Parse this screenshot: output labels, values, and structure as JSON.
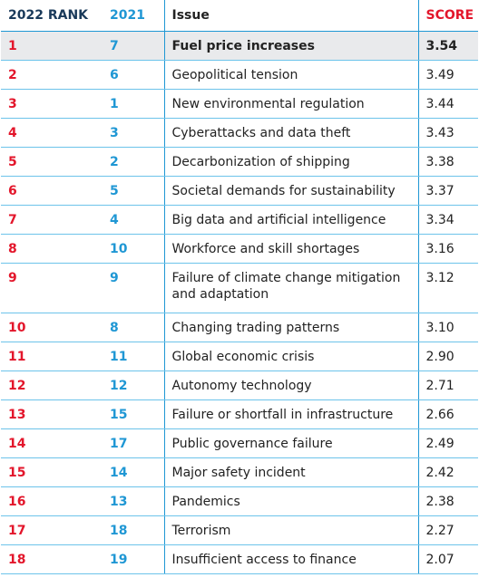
{
  "header": {
    "rank": "2022 RANK",
    "prev": "2021",
    "issue": "Issue",
    "score": "SCORE"
  },
  "rows": [
    {
      "rank": "1",
      "prev": "7",
      "issue": "Fuel price increases",
      "score": "3.54"
    },
    {
      "rank": "2",
      "prev": "6",
      "issue": "Geopolitical tension",
      "score": "3.49"
    },
    {
      "rank": "3",
      "prev": "1",
      "issue": "New environmental regulation",
      "score": "3.44"
    },
    {
      "rank": "4",
      "prev": "3",
      "issue": "Cyberattacks and data theft",
      "score": "3.43"
    },
    {
      "rank": "5",
      "prev": "2",
      "issue": "Decarbonization of shipping",
      "score": "3.38"
    },
    {
      "rank": "6",
      "prev": "5",
      "issue": "Societal demands for sustainability",
      "score": "3.37"
    },
    {
      "rank": "7",
      "prev": "4",
      "issue": "Big data and artificial intelligence",
      "score": "3.34"
    },
    {
      "rank": "8",
      "prev": "10",
      "issue": "Workforce and skill shortages",
      "score": "3.16"
    },
    {
      "rank": "9",
      "prev": "9",
      "issue": "Failure of climate change mitigation and adaptation",
      "score": "3.12"
    },
    {
      "rank": "10",
      "prev": "8",
      "issue": "Changing trading patterns",
      "score": "3.10"
    },
    {
      "rank": "11",
      "prev": "11",
      "issue": "Global economic crisis",
      "score": "2.90"
    },
    {
      "rank": "12",
      "prev": "12",
      "issue": "Autonomy technology",
      "score": "2.71"
    },
    {
      "rank": "13",
      "prev": "15",
      "issue": "Failure or shortfall in infrastructure",
      "score": "2.66"
    },
    {
      "rank": "14",
      "prev": "17",
      "issue": "Public governance failure",
      "score": "2.49"
    },
    {
      "rank": "15",
      "prev": "14",
      "issue": "Major safety incident",
      "score": "2.42"
    },
    {
      "rank": "16",
      "prev": "13",
      "issue": "Pandemics",
      "score": "2.38"
    },
    {
      "rank": "17",
      "prev": "18",
      "issue": "Terrorism",
      "score": "2.27"
    },
    {
      "rank": "18",
      "prev": "19",
      "issue": "Insufficient access to finance",
      "score": "2.07"
    }
  ],
  "colors": {
    "rank": "#e3162b",
    "prev": "#1f97d4",
    "highlight": "#e9eaec"
  }
}
